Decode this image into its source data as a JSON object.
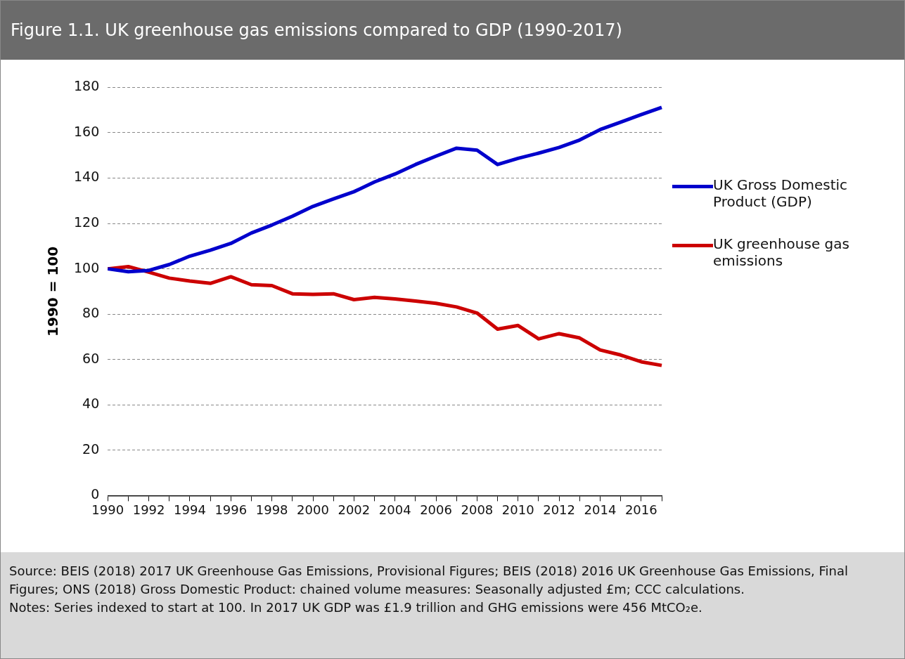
{
  "chart_data": {
    "type": "line",
    "title": "Figure 1.1. UK greenhouse gas emissions compared to GDP (1990-2017)",
    "ylabel": "1990 = 100",
    "categories": [
      "1990",
      null,
      "1992",
      null,
      "1994",
      null,
      "1996",
      null,
      "1998",
      null,
      "2000",
      null,
      "2002",
      null,
      "2004",
      null,
      "2006",
      null,
      "2008",
      null,
      "2010",
      null,
      "2012",
      null,
      "2014",
      null,
      "2016",
      null
    ],
    "series": [
      {
        "name": "UK Gross Domestic Product (GDP)",
        "color": "#0000cc",
        "values": [
          100,
          98.7,
          99.3,
          101.9,
          105.6,
          108.2,
          111.2,
          115.8,
          119.3,
          123.2,
          127.5,
          130.8,
          134,
          138.3,
          141.8,
          146,
          149.7,
          153.2,
          152.3,
          146,
          148.7,
          151,
          153.5,
          156.8,
          161.4,
          164.7,
          168,
          171.2
        ]
      },
      {
        "name": "UK greenhouse gas emissions",
        "color": "#cc0000",
        "values": [
          100,
          101,
          98.5,
          95.9,
          94.6,
          93.6,
          96.5,
          93,
          92.6,
          89,
          88.7,
          89,
          86.4,
          87.4,
          86.7,
          85.8,
          84.8,
          83.2,
          80.5,
          73.4,
          75,
          69.1,
          71.4,
          69.5,
          64.2,
          62,
          59,
          57.4
        ]
      }
    ],
    "ylim": [
      0,
      180
    ],
    "yticks": [
      0,
      20,
      40,
      60,
      80,
      100,
      120,
      140,
      160,
      180
    ],
    "grid": "y",
    "legend": "right",
    "marker": "none",
    "line_style": "solid",
    "annotations": [
      "Source: BEIS (2018) 2017 UK Greenhouse Gas Emissions, Provisional Figures; BEIS (2018) 2016 UK Greenhouse Gas Emissions, Final Figures; ONS (2018) Gross Domestic Product: chained volume measures: Seasonally adjusted £m; CCC calculations.",
      "Notes: Series indexed to start at 100. In 2017 UK GDP was £1.9 trillion and GHG emissions were 456 MtCO₂e."
    ]
  }
}
